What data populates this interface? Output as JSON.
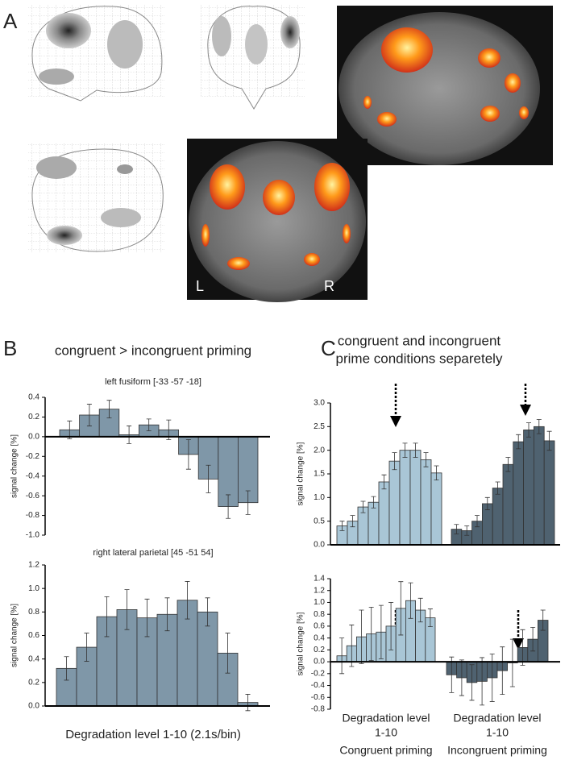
{
  "panels": {
    "a": "A",
    "b": "B",
    "c": "C"
  },
  "brain_labels": {
    "left": "L",
    "right": "R"
  },
  "panel_b_title": "congruent > incongruent priming",
  "panel_b_xlabel": "Degradation level 1-10 (2.1s/bin)",
  "panel_c_title": [
    "congruent and incongruent",
    "prime conditions separetely"
  ],
  "chart_data": [
    {
      "type": "bar",
      "title": "left fusiform [-33 -57 -18]",
      "ylabel": "signal change [%]",
      "ylim": [
        -1.0,
        0.4
      ],
      "yticks": [
        0.4,
        0.2,
        {
          "value": 0,
          "label": "0.0"
        },
        -0.2,
        -0.4,
        -0.6,
        -0.8,
        {
          "value": -1.0,
          "label": "-1.0"
        }
      ],
      "color": "#7f97a8",
      "values": [
        0.07,
        0.22,
        0.28,
        0.02,
        0.12,
        0.07,
        -0.18,
        -0.43,
        -0.71,
        -0.67
      ],
      "errors": [
        0.09,
        0.11,
        0.09,
        0.09,
        0.06,
        0.1,
        0.15,
        0.14,
        0.12,
        0.12
      ]
    },
    {
      "type": "bar",
      "title": "right lateral parietal [45 -51 54]",
      "ylabel": "signal change [%]",
      "ylim": [
        0,
        1.2
      ],
      "yticks": [
        1.2,
        {
          "value": 1.0,
          "label": "1.0"
        },
        0.8,
        0.6,
        0.4,
        0.2,
        {
          "value": 0,
          "label": "0.0"
        }
      ],
      "color": "#7f97a8",
      "values": [
        0.32,
        0.5,
        0.76,
        0.82,
        0.75,
        0.78,
        0.9,
        0.8,
        0.45,
        0.03
      ],
      "errors": [
        0.1,
        0.12,
        0.17,
        0.17,
        0.16,
        0.14,
        0.16,
        0.12,
        0.17,
        0.07
      ]
    },
    {
      "type": "bar",
      "ylabel": "signal change [%]",
      "ylim": [
        0,
        3.0
      ],
      "yticks": [
        {
          "value": 3.0,
          "label": "3.0"
        },
        2.5,
        {
          "value": 2.0,
          "label": "2.0"
        },
        1.5,
        {
          "value": 1.0,
          "label": "1.0"
        },
        0.5,
        {
          "value": 0,
          "label": "0.0"
        }
      ],
      "series": [
        {
          "color": "#a9c6d6",
          "values": [
            0.4,
            0.5,
            0.8,
            0.9,
            1.33,
            1.77,
            2.0,
            2.0,
            1.8,
            1.52
          ],
          "errors": [
            0.1,
            0.12,
            0.12,
            0.12,
            0.15,
            0.18,
            0.15,
            0.15,
            0.15,
            0.15
          ]
        },
        {
          "color": "#4f6270",
          "values": [
            0.33,
            0.3,
            0.5,
            0.87,
            1.2,
            1.7,
            2.18,
            2.43,
            2.5,
            2.2
          ],
          "errors": [
            0.1,
            0.1,
            0.12,
            0.13,
            0.13,
            0.15,
            0.15,
            0.15,
            0.15,
            0.2
          ]
        }
      ]
    },
    {
      "type": "bar",
      "ylabel": "signal change [%]",
      "ylim": [
        -0.8,
        1.4
      ],
      "yticks": [
        1.4,
        1.2,
        {
          "value": 1.0,
          "label": "1.0"
        },
        0.8,
        0.6,
        0.4,
        0.2,
        {
          "value": 0,
          "label": "0.0"
        },
        -0.2,
        -0.4,
        -0.6,
        -0.8
      ],
      "series": [
        {
          "name": "Congruent priming",
          "xlabel": [
            "Degradation level",
            "1-10"
          ],
          "color": "#a9c6d6",
          "values": [
            0.1,
            0.27,
            0.42,
            0.47,
            0.5,
            0.6,
            0.9,
            1.03,
            0.87,
            0.74
          ],
          "errors": [
            0.3,
            0.35,
            0.45,
            0.45,
            0.45,
            0.4,
            0.45,
            0.3,
            0.2,
            0.15
          ]
        },
        {
          "name": "Incongruent priming",
          "xlabel": [
            "Degradation level",
            "1-10"
          ],
          "color": "#4f6270",
          "values": [
            -0.22,
            -0.27,
            -0.35,
            -0.33,
            -0.27,
            -0.15,
            -0.02,
            0.24,
            0.38,
            0.7
          ],
          "errors": [
            0.3,
            0.3,
            0.3,
            0.4,
            0.4,
            0.4,
            0.4,
            0.3,
            0.2,
            0.17
          ]
        }
      ]
    }
  ]
}
